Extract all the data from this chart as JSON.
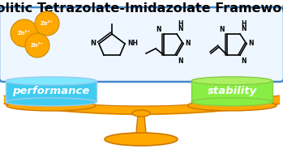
{
  "title": "Zeolitic Tetrazolate-Imidazolate Frameworks",
  "title_fontsize": 11.5,
  "title_fontweight": "bold",
  "bg_color": "#ffffff",
  "box_facecolor": "#eef6ff",
  "box_edgecolor": "#4488cc",
  "zn_color": "#FFA800",
  "zn_edge": "#cc8800",
  "zn_label": "Zn²⁺",
  "zn_label_color": "white",
  "scale_color": "#FFA800",
  "scale_edge": "#cc7700",
  "perf_color": "#40ccf0",
  "perf_edge": "#99ccee",
  "perf_top": "#80e8ff",
  "stab_color": "#88ee44",
  "stab_edge": "#88cc44",
  "stab_top": "#aaf060",
  "perf_label": "performance",
  "stab_label": "stability",
  "pan_label_color": "white",
  "pan_label_fontsize": 9.5,
  "pan_label_fontstyle": "italic"
}
